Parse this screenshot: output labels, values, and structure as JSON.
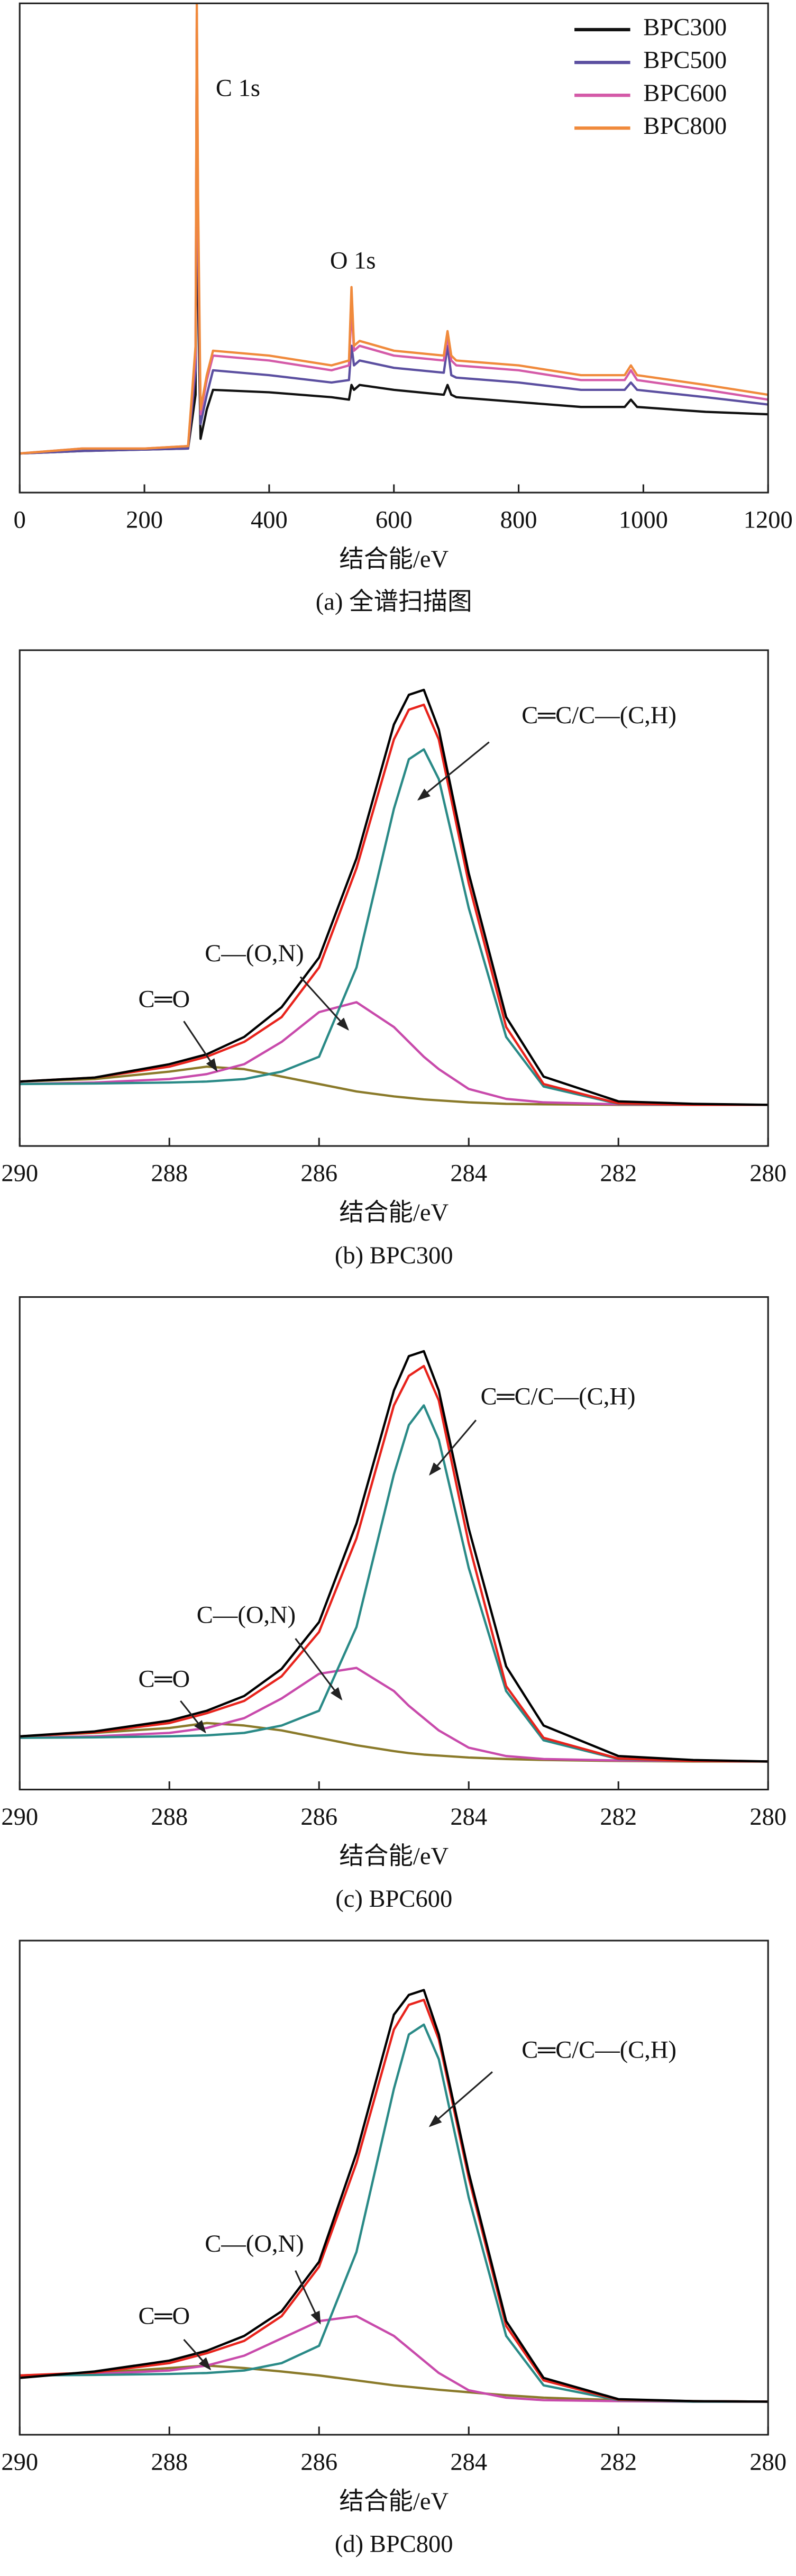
{
  "chart_data": [
    {
      "type": "line",
      "title": "(a) 全谱扫描图",
      "xlabel": "结合能/eV",
      "xlim": [
        0,
        1200
      ],
      "xticks": [
        0,
        200,
        400,
        600,
        800,
        1000,
        1200
      ],
      "ylim": [
        0,
        100
      ],
      "legend": "top-right",
      "annotations": [
        {
          "text": "C 1s"
        },
        {
          "text": "O 1s"
        }
      ],
      "x": [
        0,
        100,
        200,
        270,
        282,
        284,
        286,
        290,
        300,
        310,
        400,
        500,
        528,
        532,
        536,
        545,
        600,
        680,
        686,
        692,
        700,
        800,
        900,
        970,
        980,
        990,
        1100,
        1200
      ],
      "series": [
        {
          "name": "BPC300",
          "color": "#111111",
          "values": [
            8,
            8.5,
            8.8,
            9,
            20,
            90,
            40,
            11,
            17,
            21,
            20.5,
            19.5,
            19,
            22,
            21,
            22,
            21,
            20,
            22,
            20,
            19.5,
            18.5,
            17.5,
            17.5,
            19,
            17.5,
            16.5,
            16
          ]
        },
        {
          "name": "BPC500",
          "color": "#5b4fa0",
          "values": [
            8,
            8.5,
            8.8,
            9,
            25,
            95,
            50,
            14,
            20,
            25,
            24,
            22.5,
            23,
            30,
            26,
            27,
            25.5,
            24.5,
            30,
            24,
            23.5,
            22.5,
            21,
            21,
            22.5,
            21,
            19.5,
            18
          ]
        },
        {
          "name": "BPC600",
          "color": "#d45aa8",
          "values": [
            8,
            9,
            9,
            9.5,
            28,
            98,
            55,
            16,
            23,
            28,
            27,
            25,
            26,
            38,
            29,
            30,
            28,
            27,
            32,
            27,
            26,
            25,
            23,
            23,
            25,
            23,
            21,
            19
          ]
        },
        {
          "name": "BPC800",
          "color": "#f08a3c",
          "values": [
            8,
            9,
            9,
            9.5,
            30,
            100,
            60,
            17,
            24,
            29,
            28,
            26,
            27,
            42,
            30,
            31,
            29,
            28,
            33,
            28,
            27,
            26,
            24,
            24,
            26,
            24,
            22,
            20
          ]
        }
      ]
    },
    {
      "type": "line",
      "title": "(b) BPC300",
      "xlabel": "结合能/eV",
      "xlim": [
        290,
        280
      ],
      "xticks": [
        290,
        288,
        286,
        284,
        282,
        280
      ],
      "ylim": [
        0,
        100
      ],
      "annotations": [
        {
          "text": "C═C/C—(C,H)"
        },
        {
          "text": "C—(O,N)"
        },
        {
          "text": "C═O"
        }
      ],
      "x": [
        290,
        289,
        288,
        287.5,
        287,
        286.5,
        286,
        285.5,
        285,
        284.8,
        284.6,
        284.4,
        284,
        283.5,
        283,
        282,
        281,
        280
      ],
      "series": [
        {
          "color": "#8a7a2a",
          "values": [
            13,
            13.5,
            15,
            16,
            15.5,
            14,
            12.5,
            11,
            10,
            9.7,
            9.4,
            9.2,
            8.8,
            8.5,
            8.4,
            8.3,
            8.3,
            8.3
          ]
        },
        {
          "color": "#c84aab",
          "values": [
            12.5,
            12.8,
            13.5,
            14.5,
            16.5,
            21,
            27,
            29,
            24,
            21,
            18,
            15.5,
            11.5,
            9.5,
            8.8,
            8.4,
            8.3,
            8.3
          ]
        },
        {
          "color": "#2a8a87",
          "values": [
            12.5,
            12.6,
            12.8,
            13,
            13.5,
            15,
            18,
            36,
            68,
            78,
            80,
            74,
            48,
            22,
            12,
            8.5,
            8.3,
            8.3
          ]
        },
        {
          "color": "#e8231c",
          "values": [
            13,
            13.8,
            16,
            18,
            21,
            26,
            36,
            56,
            82,
            88,
            89,
            82,
            53,
            24,
            12.5,
            8.6,
            8.3,
            8.3
          ]
        },
        {
          "color": "#000000",
          "values": [
            13,
            13.8,
            16.5,
            18.5,
            22,
            28,
            38,
            58,
            85,
            91,
            92,
            84,
            55,
            26,
            14,
            9,
            8.5,
            8.3
          ]
        }
      ]
    },
    {
      "type": "line",
      "title": "(c) BPC600",
      "xlabel": "结合能/eV",
      "xlim": [
        290,
        280
      ],
      "xticks": [
        290,
        288,
        286,
        284,
        282,
        280
      ],
      "ylim": [
        0,
        100
      ],
      "annotations": [
        {
          "text": "C═C/C—(C,H)"
        },
        {
          "text": "C—(O,N)"
        },
        {
          "text": "C═O"
        }
      ],
      "x": [
        290,
        289,
        288,
        287.5,
        287,
        286.5,
        286,
        285.5,
        285,
        284.8,
        284.6,
        284.4,
        284,
        283.5,
        283,
        282,
        281,
        280
      ],
      "series": [
        {
          "color": "#8a7a2a",
          "values": [
            10.8,
            11.5,
            12.5,
            13.5,
            13,
            12,
            10.5,
            9,
            7.8,
            7.4,
            7.1,
            6.9,
            6.5,
            6.2,
            6,
            5.8,
            5.7,
            5.7
          ]
        },
        {
          "color": "#c84aab",
          "values": [
            10.5,
            10.8,
            11.5,
            12.5,
            14.5,
            18.5,
            23.5,
            24.7,
            20,
            17,
            14.5,
            12,
            8.5,
            6.8,
            6.2,
            5.9,
            5.8,
            5.7
          ]
        },
        {
          "color": "#2a8a87",
          "values": [
            10.5,
            10.6,
            10.8,
            11,
            11.5,
            13,
            16,
            33,
            64,
            74,
            78,
            71,
            45,
            20,
            10,
            6.2,
            5.8,
            5.7
          ]
        },
        {
          "color": "#e8231c",
          "values": [
            10.8,
            11.6,
            13.5,
            15.5,
            18,
            23,
            32,
            51,
            78,
            84,
            86,
            79,
            50,
            21,
            10.5,
            6.3,
            5.8,
            5.7
          ]
        },
        {
          "color": "#000000",
          "values": [
            10.8,
            11.8,
            14,
            16,
            19,
            24.5,
            34,
            54,
            81,
            88,
            89,
            81,
            53,
            25,
            13,
            6.8,
            6,
            5.7
          ]
        }
      ]
    },
    {
      "type": "line",
      "title": "(d) BPC800",
      "xlabel": "结合能/eV",
      "xlim": [
        290,
        280
      ],
      "xticks": [
        290,
        288,
        286,
        284,
        282,
        280
      ],
      "ylim": [
        0,
        100
      ],
      "annotations": [
        {
          "text": "C═C/C—(C,H)"
        },
        {
          "text": "C—(O,N)"
        },
        {
          "text": "C═O"
        }
      ],
      "x": [
        290,
        289,
        288,
        287.5,
        287,
        286.5,
        286,
        285.5,
        285,
        284.8,
        284.6,
        284.4,
        284,
        283.5,
        283,
        282,
        281,
        280
      ],
      "series": [
        {
          "color": "#8a7a2a",
          "values": [
            12,
            12.5,
            13.5,
            14,
            13.5,
            12.8,
            12,
            11,
            10,
            9.7,
            9.4,
            9.1,
            8.6,
            8,
            7.5,
            7,
            6.8,
            6.7
          ]
        },
        {
          "color": "#c84aab",
          "values": [
            12,
            12.3,
            13,
            14,
            16,
            19.5,
            23,
            24,
            20,
            17.5,
            15,
            12.5,
            9,
            7.5,
            7,
            6.8,
            6.7,
            6.7
          ]
        },
        {
          "color": "#2a8a87",
          "values": [
            12,
            12.1,
            12.3,
            12.5,
            13,
            14.5,
            18,
            37,
            70,
            81,
            83,
            76,
            48,
            20,
            10,
            7,
            6.7,
            6.7
          ]
        },
        {
          "color": "#e8231c",
          "values": [
            12,
            12.6,
            14.5,
            16.5,
            19,
            24,
            34,
            55,
            82,
            87,
            88,
            80,
            52,
            22,
            11,
            7.1,
            6.8,
            6.7
          ]
        },
        {
          "color": "#000000",
          "values": [
            11.5,
            12.8,
            15,
            17,
            20,
            25,
            35,
            57,
            85,
            89,
            90,
            81,
            53,
            23,
            11.5,
            7.2,
            6.8,
            6.7
          ]
        }
      ]
    }
  ]
}
